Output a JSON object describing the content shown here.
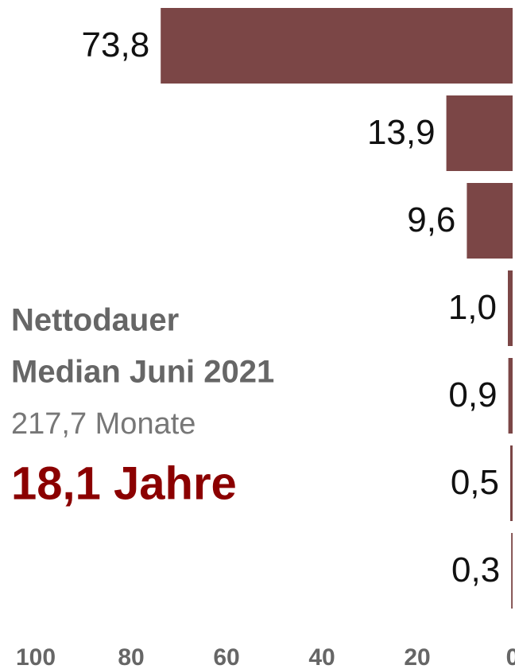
{
  "chart_data": {
    "type": "bar",
    "orientation": "horizontal",
    "values": [
      73.8,
      13.9,
      9.6,
      1.0,
      0.9,
      0.5,
      0.3
    ],
    "value_labels": [
      "73,8",
      "13,9",
      "9,6",
      "1,0",
      "0,9",
      "0,5",
      "0,3"
    ],
    "color": "#7b4646",
    "xlim": [
      100,
      0
    ],
    "xticks": [
      100,
      80,
      60,
      40,
      20,
      0
    ],
    "annotations": [
      "Nettodauer",
      "Median Juni 2021",
      "217,7 Monate",
      "18,1 Jahre"
    ]
  }
}
